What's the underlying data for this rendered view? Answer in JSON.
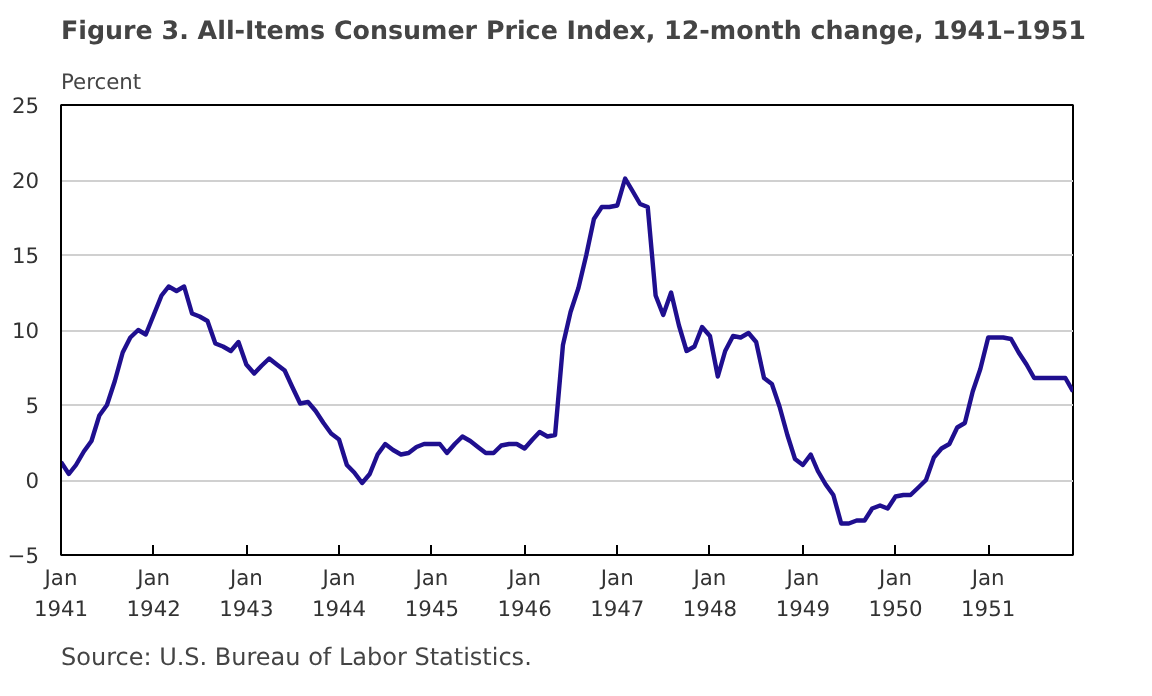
{
  "chart_data": {
    "type": "line",
    "title": "Figure 3. All-Items Consumer Price Index, 12-month change, 1941–1951",
    "ylabel": "Percent",
    "annotations": [
      "Source: U.S. Bureau of Labor Statistics."
    ],
    "x": [
      "1941-01",
      "1941-02",
      "1941-03",
      "1941-04",
      "1941-05",
      "1941-06",
      "1941-07",
      "1941-08",
      "1941-09",
      "1941-10",
      "1941-11",
      "1941-12",
      "1942-01",
      "1942-02",
      "1942-03",
      "1942-04",
      "1942-05",
      "1942-06",
      "1942-07",
      "1942-08",
      "1942-09",
      "1942-10",
      "1942-11",
      "1942-12",
      "1943-01",
      "1943-02",
      "1943-03",
      "1943-04",
      "1943-05",
      "1943-06",
      "1943-07",
      "1943-08",
      "1943-09",
      "1943-10",
      "1943-11",
      "1943-12",
      "1944-01",
      "1944-02",
      "1944-03",
      "1944-04",
      "1944-05",
      "1944-06",
      "1944-07",
      "1944-08",
      "1944-09",
      "1944-10",
      "1944-11",
      "1944-12",
      "1945-01",
      "1945-02",
      "1945-03",
      "1945-04",
      "1945-05",
      "1945-06",
      "1945-07",
      "1945-08",
      "1945-09",
      "1945-10",
      "1945-11",
      "1945-12",
      "1946-01",
      "1946-02",
      "1946-03",
      "1946-04",
      "1946-05",
      "1946-06",
      "1946-07",
      "1946-08",
      "1946-09",
      "1946-10",
      "1946-11",
      "1946-12",
      "1947-01",
      "1947-02",
      "1947-03",
      "1947-04",
      "1947-05",
      "1947-06",
      "1947-07",
      "1947-08",
      "1947-09",
      "1947-10",
      "1947-11",
      "1947-12",
      "1948-01",
      "1948-02",
      "1948-03",
      "1948-04",
      "1948-05",
      "1948-06",
      "1948-07",
      "1948-08",
      "1948-09",
      "1948-10",
      "1948-11",
      "1948-12",
      "1949-01",
      "1949-02",
      "1949-03",
      "1949-04",
      "1949-05",
      "1949-06",
      "1949-07",
      "1949-08",
      "1949-09",
      "1949-10",
      "1949-11",
      "1949-12",
      "1950-01",
      "1950-02",
      "1950-03",
      "1950-04",
      "1950-05",
      "1950-06",
      "1950-07",
      "1950-08",
      "1950-09",
      "1950-10",
      "1950-11",
      "1950-12",
      "1951-01",
      "1951-02",
      "1951-03",
      "1951-04",
      "1951-05",
      "1951-06",
      "1951-07",
      "1951-08",
      "1951-09",
      "1951-10",
      "1951-11",
      "1951-12"
    ],
    "series": [
      {
        "color": "#1f0f8f",
        "values": [
          1.2,
          0.4,
          1.0,
          1.9,
          2.6,
          4.3,
          5.0,
          6.6,
          8.5,
          9.5,
          10.0,
          9.7,
          11.0,
          12.3,
          12.9,
          12.6,
          12.9,
          11.1,
          10.9,
          10.6,
          9.1,
          8.9,
          8.6,
          9.2,
          7.7,
          7.1,
          7.6,
          8.1,
          7.7,
          7.3,
          6.2,
          5.1,
          5.2,
          4.6,
          3.8,
          3.1,
          2.7,
          1.0,
          0.5,
          -0.2,
          0.4,
          1.7,
          2.4,
          2.0,
          1.7,
          1.8,
          2.2,
          2.4,
          2.4,
          2.4,
          1.8,
          2.4,
          2.9,
          2.6,
          2.2,
          1.8,
          1.8,
          2.3,
          2.4,
          2.4,
          2.1,
          2.7,
          3.2,
          2.9,
          3.0,
          9.0,
          11.2,
          12.8,
          15.0,
          17.4,
          18.2,
          18.2,
          18.3,
          20.1,
          19.3,
          18.4,
          18.2,
          12.3,
          11.0,
          12.5,
          10.3,
          8.6,
          8.9,
          10.2,
          9.6,
          6.9,
          8.6,
          9.6,
          9.5,
          9.8,
          9.2,
          6.8,
          6.4,
          4.9,
          3.0,
          1.4,
          1.0,
          1.7,
          0.6,
          -0.3,
          -1.0,
          -2.9,
          -2.9,
          -2.7,
          -2.7,
          -1.9,
          -1.7,
          -1.9,
          -1.1,
          -1.0,
          -1.0,
          -0.5,
          0.0,
          1.5,
          2.1,
          2.4,
          3.5,
          3.8,
          5.9,
          7.4,
          9.5,
          9.5,
          9.5,
          9.4,
          8.5,
          7.7,
          6.8,
          6.8,
          6.8,
          6.8,
          6.8,
          5.9
        ]
      }
    ],
    "xlim": [
      "1941-01",
      "1951-12"
    ],
    "xticks": [
      {
        "value": "1941-01",
        "label": "Jan\n1941"
      },
      {
        "value": "1942-01",
        "label": "Jan\n1942"
      },
      {
        "value": "1943-01",
        "label": "Jan\n1943"
      },
      {
        "value": "1944-01",
        "label": "Jan\n1944"
      },
      {
        "value": "1945-01",
        "label": "Jan\n1945"
      },
      {
        "value": "1946-01",
        "label": "Jan\n1946"
      },
      {
        "value": "1947-01",
        "label": "Jan\n1947"
      },
      {
        "value": "1948-01",
        "label": "Jan\n1948"
      },
      {
        "value": "1949-01",
        "label": "Jan\n1949"
      },
      {
        "value": "1950-01",
        "label": "Jan\n1950"
      },
      {
        "value": "1951-01",
        "label": "Jan\n1951"
      }
    ],
    "ylim": [
      -5,
      25
    ],
    "yticks": [
      -5,
      0,
      5,
      10,
      15,
      20,
      25
    ],
    "grid": "y",
    "line_style": "solid"
  }
}
